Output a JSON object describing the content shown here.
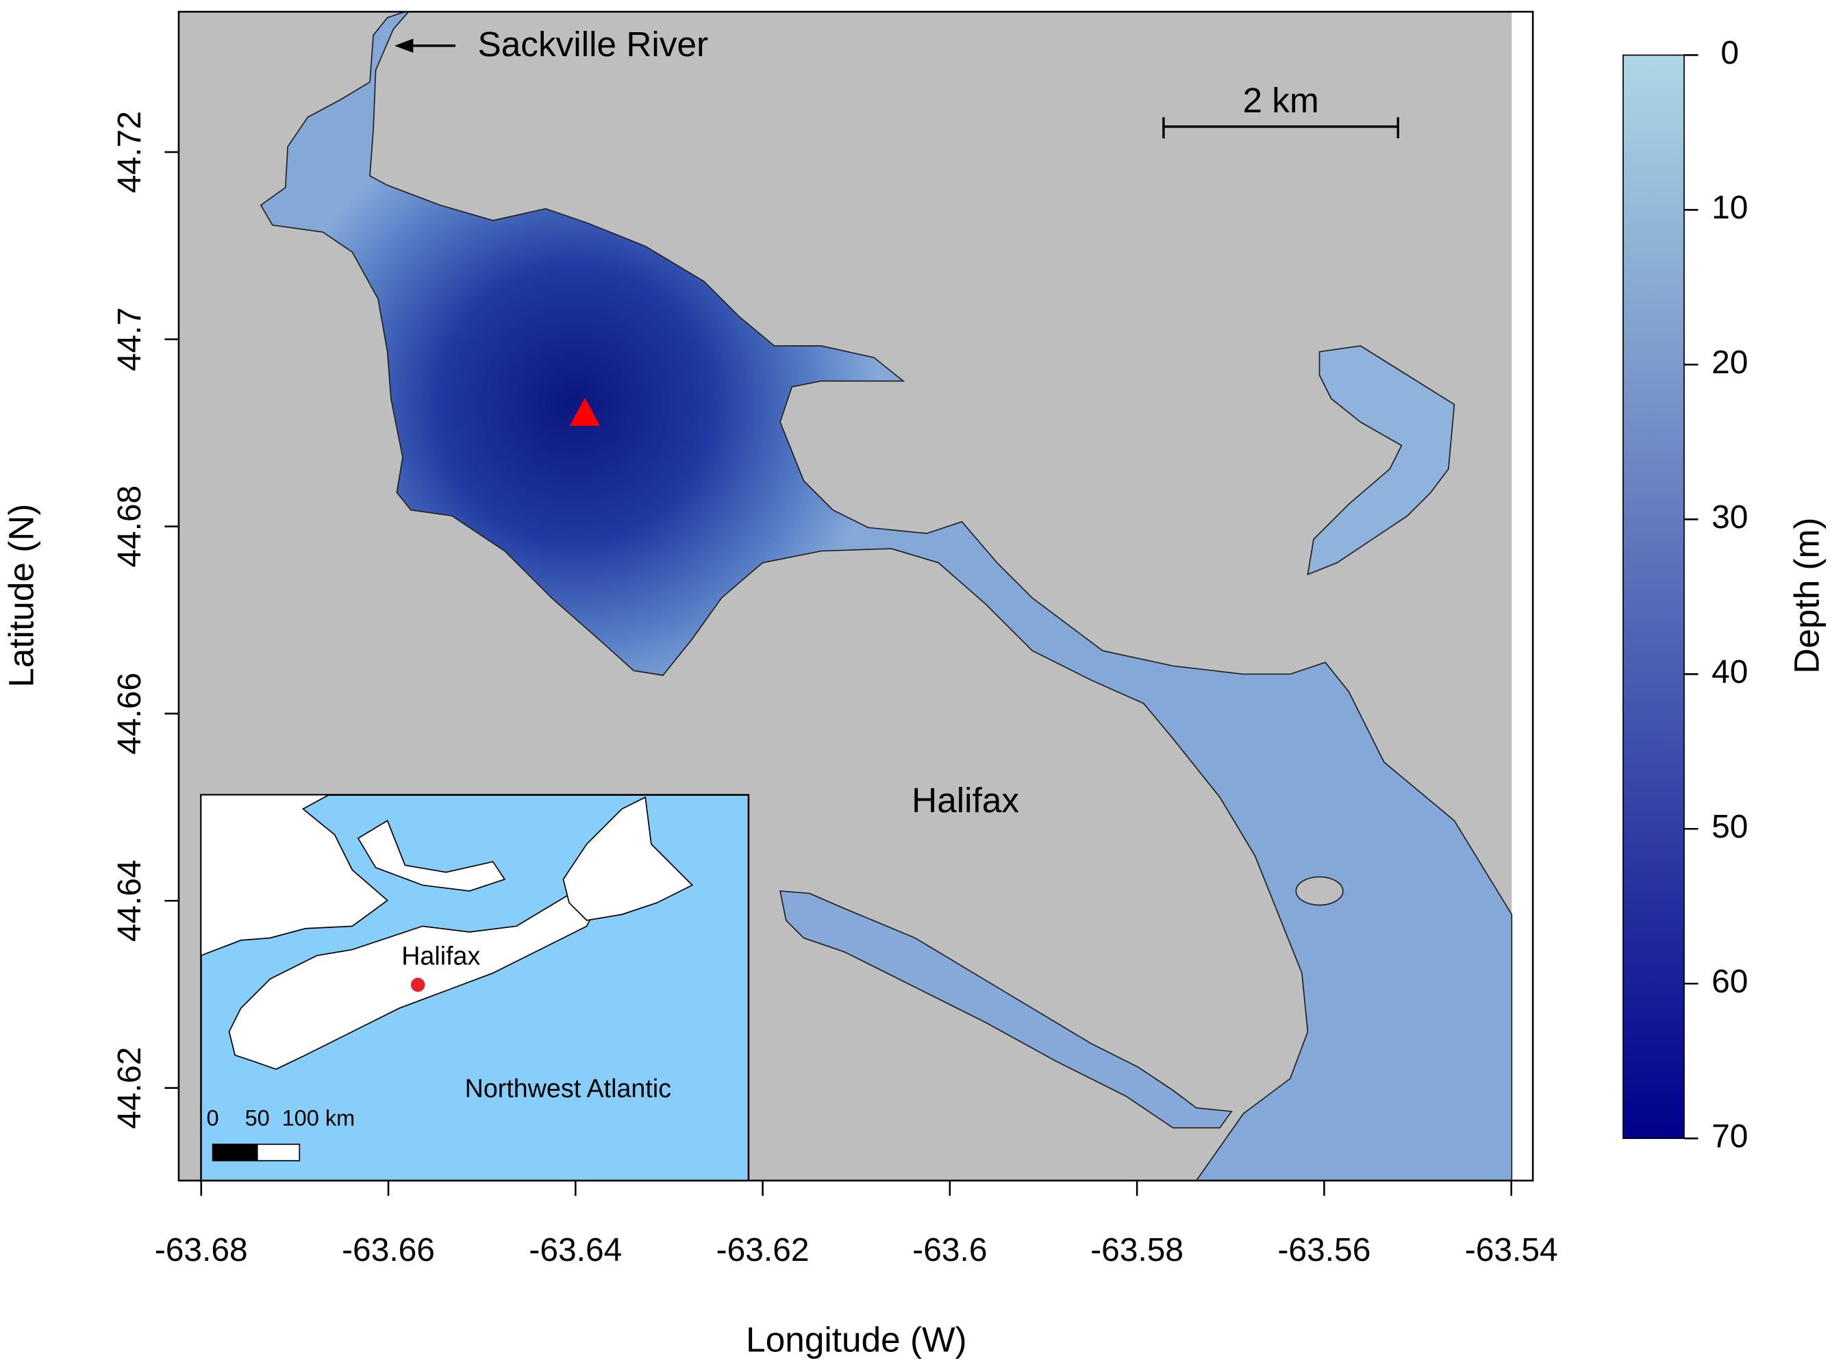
{
  "chart_data": {
    "type": "map",
    "xlabel": "Longitude (W)",
    "ylabel": "Latitude (N)",
    "xlim": [
      -63.6824,
      -63.5377
    ],
    "ylim": [
      44.6101,
      44.735
    ],
    "xticks": [
      -63.68,
      -63.66,
      -63.64,
      -63.62,
      -63.6,
      -63.58,
      -63.56,
      -63.54
    ],
    "yticks": [
      44.62,
      44.64,
      44.66,
      44.68,
      44.7,
      44.72
    ],
    "marker": {
      "x": -63.639,
      "y": 44.692,
      "color": "#ff0000"
    },
    "colorbar": {
      "label": "Depth (m)",
      "lim": [
        0,
        70
      ],
      "ticks": [
        0,
        10,
        20,
        30,
        40,
        50,
        60,
        70
      ],
      "colors": [
        "#add8e6",
        "#00008b"
      ]
    },
    "annotations": {
      "river": "Sackville River",
      "scale": "2 km",
      "city": "Halifax"
    },
    "inset": {
      "city": "Halifax",
      "ocean": "Northwest Atlantic",
      "scale_labels": [
        "0",
        "50",
        "100 km"
      ]
    }
  }
}
